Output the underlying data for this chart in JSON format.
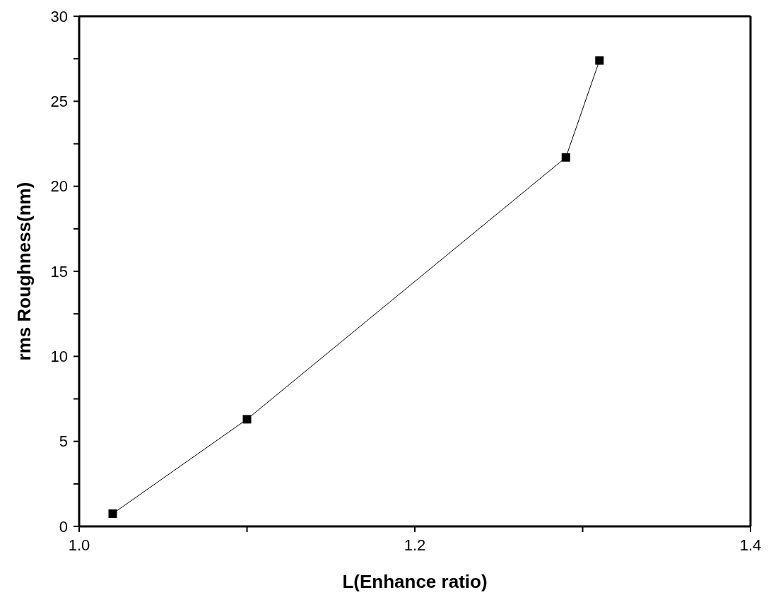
{
  "chart_data": {
    "type": "line",
    "xlabel": "L(Enhance ratio)",
    "ylabel": "rms Roughness(nm)",
    "x": [
      1.02,
      1.1,
      1.29,
      1.31
    ],
    "series": [
      {
        "color": "#000000",
        "values": [
          0.75,
          6.3,
          21.7,
          27.4
        ]
      }
    ],
    "xlim": [
      1.0,
      1.4
    ],
    "xticks": [
      {
        "value": 1.0,
        "label": "1.0"
      },
      {
        "value": 1.1,
        "label": null
      },
      {
        "value": 1.2,
        "label": "1.2"
      },
      {
        "value": 1.3,
        "label": null
      },
      {
        "value": 1.4,
        "label": "1.4"
      }
    ],
    "ylim": [
      0,
      30
    ],
    "yticks": [
      0,
      {
        "value": 2.5,
        "label": null
      },
      5,
      {
        "value": 7.5,
        "label": null
      },
      10,
      {
        "value": 12.5,
        "label": null
      },
      15,
      {
        "value": 17.5,
        "label": null
      },
      20,
      {
        "value": 22.5,
        "label": null
      },
      25,
      {
        "value": 27.5,
        "label": null
      },
      30
    ],
    "marker": "square",
    "line_style": "solid",
    "grid": false,
    "legend": false
  }
}
